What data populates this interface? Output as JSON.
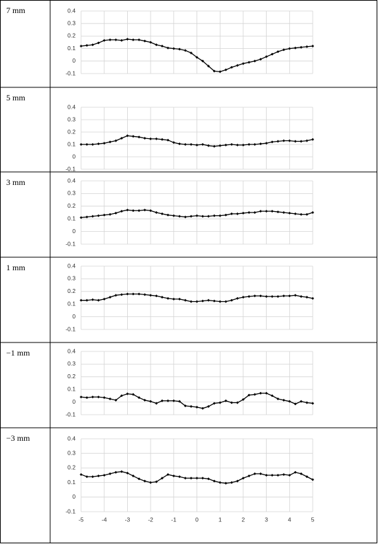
{
  "chart_data": [
    {
      "type": "line",
      "title": "7 mm",
      "color": "#000000",
      "grid": true,
      "xtick_labels": false,
      "xlim": [
        -5,
        5
      ],
      "ylim": [
        -0.1,
        0.4
      ],
      "xticks": [
        -5,
        -4,
        -3,
        -2,
        -1,
        0,
        1,
        2,
        3,
        4,
        5
      ],
      "yticks": [
        -0.1,
        0,
        0.1,
        0.2,
        0.3,
        0.4
      ],
      "x": [
        -5,
        -4.75,
        -4.5,
        -4.25,
        -4,
        -3.75,
        -3.5,
        -3.25,
        -3,
        -2.75,
        -2.5,
        -2.25,
        -2,
        -1.75,
        -1.5,
        -1.25,
        -1,
        -0.75,
        -0.5,
        -0.25,
        0,
        0.25,
        0.5,
        0.75,
        1,
        1.25,
        1.5,
        1.75,
        2,
        2.25,
        2.5,
        2.75,
        3,
        3.25,
        3.5,
        3.75,
        4,
        4.25,
        4.5,
        4.75,
        5
      ],
      "values": [
        0.12,
        0.125,
        0.13,
        0.145,
        0.165,
        0.17,
        0.17,
        0.165,
        0.175,
        0.17,
        0.17,
        0.16,
        0.15,
        0.13,
        0.12,
        0.105,
        0.1,
        0.095,
        0.085,
        0.065,
        0.03,
        0,
        -0.04,
        -0.08,
        -0.085,
        -0.07,
        -0.05,
        -0.035,
        -0.02,
        -0.01,
        0,
        0.015,
        0.035,
        0.055,
        0.075,
        0.09,
        0.1,
        0.105,
        0.11,
        0.115,
        0.12
      ]
    },
    {
      "type": "line",
      "title": "5 mm",
      "color": "#000000",
      "grid": true,
      "xtick_labels": false,
      "xlim": [
        -5,
        5
      ],
      "ylim": [
        -0.1,
        0.4
      ],
      "xticks": [
        -5,
        -4,
        -3,
        -2,
        -1,
        0,
        1,
        2,
        3,
        4,
        5
      ],
      "yticks": [
        -0.1,
        0,
        0.1,
        0.2,
        0.3,
        0.4
      ],
      "x": [
        -5,
        -4.75,
        -4.5,
        -4.25,
        -4,
        -3.75,
        -3.5,
        -3.25,
        -3,
        -2.75,
        -2.5,
        -2.25,
        -2,
        -1.75,
        -1.5,
        -1.25,
        -1,
        -0.75,
        -0.5,
        -0.25,
        0,
        0.25,
        0.5,
        0.75,
        1,
        1.25,
        1.5,
        1.75,
        2,
        2.25,
        2.5,
        2.75,
        3,
        3.25,
        3.5,
        3.75,
        4,
        4.25,
        4.5,
        4.75,
        5
      ],
      "values": [
        0.1,
        0.1,
        0.1,
        0.105,
        0.11,
        0.12,
        0.13,
        0.15,
        0.17,
        0.165,
        0.16,
        0.15,
        0.145,
        0.145,
        0.14,
        0.135,
        0.115,
        0.105,
        0.1,
        0.1,
        0.095,
        0.1,
        0.09,
        0.085,
        0.09,
        0.095,
        0.1,
        0.095,
        0.095,
        0.1,
        0.1,
        0.105,
        0.11,
        0.12,
        0.125,
        0.13,
        0.13,
        0.125,
        0.125,
        0.13,
        0.14
      ]
    },
    {
      "type": "line",
      "title": "3 mm",
      "color": "#000000",
      "grid": true,
      "xtick_labels": false,
      "xlim": [
        -5,
        5
      ],
      "ylim": [
        -0.1,
        0.4
      ],
      "xticks": [
        -5,
        -4,
        -3,
        -2,
        -1,
        0,
        1,
        2,
        3,
        4,
        5
      ],
      "yticks": [
        -0.1,
        0,
        0.1,
        0.2,
        0.3,
        0.4
      ],
      "x": [
        -5,
        -4.75,
        -4.5,
        -4.25,
        -4,
        -3.75,
        -3.5,
        -3.25,
        -3,
        -2.75,
        -2.5,
        -2.25,
        -2,
        -1.75,
        -1.5,
        -1.25,
        -1,
        -0.75,
        -0.5,
        -0.25,
        0,
        0.25,
        0.5,
        0.75,
        1,
        1.25,
        1.5,
        1.75,
        2,
        2.25,
        2.5,
        2.75,
        3,
        3.25,
        3.5,
        3.75,
        4,
        4.25,
        4.5,
        4.75,
        5
      ],
      "values": [
        0.11,
        0.115,
        0.12,
        0.125,
        0.13,
        0.135,
        0.145,
        0.16,
        0.17,
        0.165,
        0.165,
        0.17,
        0.165,
        0.15,
        0.14,
        0.13,
        0.125,
        0.12,
        0.115,
        0.12,
        0.125,
        0.12,
        0.12,
        0.125,
        0.125,
        0.13,
        0.14,
        0.14,
        0.145,
        0.15,
        0.15,
        0.16,
        0.16,
        0.16,
        0.155,
        0.15,
        0.145,
        0.14,
        0.135,
        0.135,
        0.15
      ]
    },
    {
      "type": "line",
      "title": "1 mm",
      "color": "#000000",
      "grid": true,
      "xtick_labels": false,
      "xlim": [
        -5,
        5
      ],
      "ylim": [
        -0.1,
        0.4
      ],
      "xticks": [
        -5,
        -4,
        -3,
        -2,
        -1,
        0,
        1,
        2,
        3,
        4,
        5
      ],
      "yticks": [
        -0.1,
        0,
        0.1,
        0.2,
        0.3,
        0.4
      ],
      "x": [
        -5,
        -4.75,
        -4.5,
        -4.25,
        -4,
        -3.75,
        -3.5,
        -3.25,
        -3,
        -2.75,
        -2.5,
        -2.25,
        -2,
        -1.75,
        -1.5,
        -1.25,
        -1,
        -0.75,
        -0.5,
        -0.25,
        0,
        0.25,
        0.5,
        0.75,
        1,
        1.25,
        1.5,
        1.75,
        2,
        2.25,
        2.5,
        2.75,
        3,
        3.25,
        3.5,
        3.75,
        4,
        4.25,
        4.5,
        4.75,
        5
      ],
      "values": [
        0.13,
        0.13,
        0.135,
        0.13,
        0.14,
        0.155,
        0.17,
        0.175,
        0.18,
        0.18,
        0.18,
        0.175,
        0.17,
        0.165,
        0.155,
        0.145,
        0.14,
        0.14,
        0.13,
        0.12,
        0.12,
        0.125,
        0.13,
        0.125,
        0.12,
        0.12,
        0.13,
        0.145,
        0.155,
        0.16,
        0.165,
        0.165,
        0.16,
        0.16,
        0.16,
        0.165,
        0.165,
        0.17,
        0.16,
        0.155,
        0.145
      ]
    },
    {
      "type": "line",
      "title": "−1 mm",
      "color": "#000000",
      "grid": true,
      "xtick_labels": false,
      "xlim": [
        -5,
        5
      ],
      "ylim": [
        -0.1,
        0.4
      ],
      "xticks": [
        -5,
        -4,
        -3,
        -2,
        -1,
        0,
        1,
        2,
        3,
        4,
        5
      ],
      "yticks": [
        -0.1,
        0,
        0.1,
        0.2,
        0.3,
        0.4
      ],
      "x": [
        -5,
        -4.75,
        -4.5,
        -4.25,
        -4,
        -3.75,
        -3.5,
        -3.25,
        -3,
        -2.75,
        -2.5,
        -2.25,
        -2,
        -1.75,
        -1.5,
        -1.25,
        -1,
        -0.75,
        -0.5,
        -0.25,
        0,
        0.25,
        0.5,
        0.75,
        1,
        1.25,
        1.5,
        1.75,
        2,
        2.25,
        2.5,
        2.75,
        3,
        3.25,
        3.5,
        3.75,
        4,
        4.25,
        4.5,
        4.75,
        5
      ],
      "values": [
        0.04,
        0.035,
        0.04,
        0.04,
        0.035,
        0.025,
        0.015,
        0.05,
        0.065,
        0.06,
        0.035,
        0.015,
        0.005,
        -0.01,
        0.01,
        0.01,
        0.01,
        0.005,
        -0.03,
        -0.035,
        -0.04,
        -0.05,
        -0.035,
        -0.01,
        -0.005,
        0.01,
        -0.005,
        -0.005,
        0.02,
        0.055,
        0.06,
        0.07,
        0.07,
        0.05,
        0.025,
        0.015,
        0.005,
        -0.015,
        0.005,
        -0.005,
        -0.01
      ]
    },
    {
      "type": "line",
      "title": "−3 mm",
      "color": "#000000",
      "grid": true,
      "xtick_labels": true,
      "xlim": [
        -5,
        5
      ],
      "ylim": [
        -0.1,
        0.4
      ],
      "xticks": [
        -5,
        -4,
        -3,
        -2,
        -1,
        0,
        1,
        2,
        3,
        4,
        5
      ],
      "yticks": [
        -0.1,
        0,
        0.1,
        0.2,
        0.3,
        0.4
      ],
      "x": [
        -5,
        -4.75,
        -4.5,
        -4.25,
        -4,
        -3.75,
        -3.5,
        -3.25,
        -3,
        -2.75,
        -2.5,
        -2.25,
        -2,
        -1.75,
        -1.5,
        -1.25,
        -1,
        -0.75,
        -0.5,
        -0.25,
        0,
        0.25,
        0.5,
        0.75,
        1,
        1.25,
        1.5,
        1.75,
        2,
        2.25,
        2.5,
        2.75,
        3,
        3.25,
        3.5,
        3.75,
        4,
        4.25,
        4.5,
        4.75,
        5
      ],
      "values": [
        0.155,
        0.14,
        0.14,
        0.145,
        0.15,
        0.16,
        0.17,
        0.175,
        0.165,
        0.145,
        0.125,
        0.11,
        0.1,
        0.105,
        0.13,
        0.155,
        0.145,
        0.14,
        0.13,
        0.13,
        0.13,
        0.13,
        0.125,
        0.11,
        0.1,
        0.095,
        0.1,
        0.11,
        0.13,
        0.145,
        0.16,
        0.16,
        0.15,
        0.15,
        0.15,
        0.155,
        0.15,
        0.17,
        0.16,
        0.14,
        0.12
      ]
    }
  ]
}
